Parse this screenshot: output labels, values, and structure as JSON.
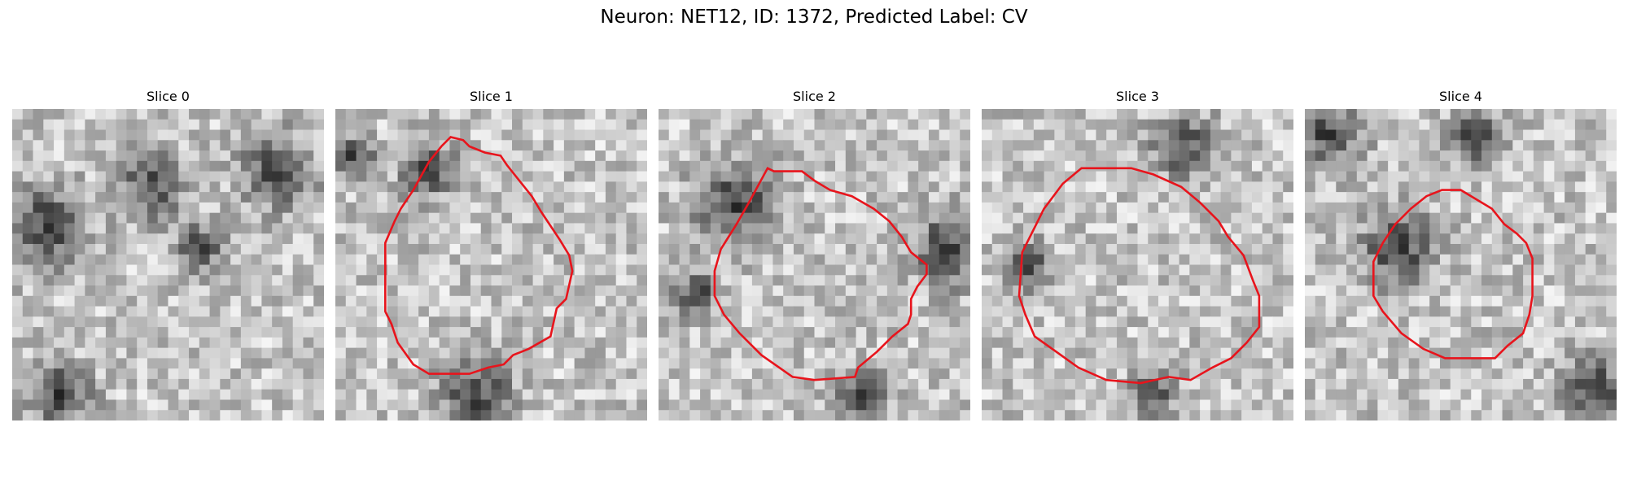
{
  "figure": {
    "title": "Neuron: NET12, ID: 1372, Predicted Label: CV",
    "contour_color": "#e8141c"
  },
  "panels": [
    {
      "title": "Slice 0",
      "has_contour": false,
      "seed": 11,
      "dark_spots": [
        [
          0.1,
          0.38,
          0.09
        ],
        [
          0.45,
          0.25,
          0.07
        ],
        [
          0.6,
          0.45,
          0.05
        ],
        [
          0.15,
          0.92,
          0.07
        ],
        [
          0.85,
          0.2,
          0.08
        ]
      ],
      "contour": []
    },
    {
      "title": "Slice 1",
      "has_contour": true,
      "seed": 23,
      "dark_spots": [
        [
          0.45,
          0.92,
          0.08
        ],
        [
          0.3,
          0.2,
          0.06
        ],
        [
          0.05,
          0.15,
          0.05
        ]
      ],
      "contour": [
        [
          0.37,
          0.09
        ],
        [
          0.41,
          0.1
        ],
        [
          0.43,
          0.12
        ],
        [
          0.48,
          0.14
        ],
        [
          0.53,
          0.15
        ],
        [
          0.55,
          0.18
        ],
        [
          0.63,
          0.28
        ],
        [
          0.66,
          0.33
        ],
        [
          0.72,
          0.42
        ],
        [
          0.75,
          0.47
        ],
        [
          0.76,
          0.52
        ],
        [
          0.74,
          0.61
        ],
        [
          0.71,
          0.64
        ],
        [
          0.69,
          0.73
        ],
        [
          0.62,
          0.77
        ],
        [
          0.57,
          0.79
        ],
        [
          0.54,
          0.82
        ],
        [
          0.49,
          0.83
        ],
        [
          0.43,
          0.85
        ],
        [
          0.3,
          0.85
        ],
        [
          0.25,
          0.82
        ],
        [
          0.2,
          0.75
        ],
        [
          0.18,
          0.69
        ],
        [
          0.16,
          0.65
        ],
        [
          0.16,
          0.43
        ],
        [
          0.19,
          0.36
        ],
        [
          0.21,
          0.32
        ],
        [
          0.25,
          0.26
        ],
        [
          0.3,
          0.17
        ],
        [
          0.34,
          0.12
        ]
      ]
    },
    {
      "title": "Slice 2",
      "has_contour": true,
      "seed": 37,
      "dark_spots": [
        [
          0.25,
          0.3,
          0.09
        ],
        [
          0.93,
          0.45,
          0.08
        ],
        [
          0.65,
          0.92,
          0.06
        ],
        [
          0.12,
          0.6,
          0.05
        ]
      ],
      "contour": [
        [
          0.35,
          0.19
        ],
        [
          0.37,
          0.2
        ],
        [
          0.46,
          0.2
        ],
        [
          0.5,
          0.23
        ],
        [
          0.55,
          0.26
        ],
        [
          0.62,
          0.28
        ],
        [
          0.69,
          0.32
        ],
        [
          0.74,
          0.36
        ],
        [
          0.78,
          0.41
        ],
        [
          0.81,
          0.46
        ],
        [
          0.86,
          0.5
        ],
        [
          0.86,
          0.53
        ],
        [
          0.83,
          0.57
        ],
        [
          0.81,
          0.61
        ],
        [
          0.81,
          0.66
        ],
        [
          0.8,
          0.69
        ],
        [
          0.75,
          0.73
        ],
        [
          0.72,
          0.76
        ],
        [
          0.7,
          0.78
        ],
        [
          0.64,
          0.83
        ],
        [
          0.63,
          0.86
        ],
        [
          0.5,
          0.87
        ],
        [
          0.43,
          0.86
        ],
        [
          0.33,
          0.79
        ],
        [
          0.26,
          0.72
        ],
        [
          0.21,
          0.66
        ],
        [
          0.18,
          0.6
        ],
        [
          0.18,
          0.52
        ],
        [
          0.2,
          0.45
        ],
        [
          0.25,
          0.37
        ],
        [
          0.29,
          0.3
        ]
      ]
    },
    {
      "title": "Slice 3",
      "has_contour": true,
      "seed": 53,
      "dark_spots": [
        [
          0.65,
          0.12,
          0.07
        ],
        [
          0.15,
          0.5,
          0.05
        ],
        [
          0.55,
          0.92,
          0.05
        ]
      ],
      "contour": [
        [
          0.32,
          0.19
        ],
        [
          0.48,
          0.19
        ],
        [
          0.55,
          0.21
        ],
        [
          0.64,
          0.25
        ],
        [
          0.7,
          0.3
        ],
        [
          0.76,
          0.36
        ],
        [
          0.79,
          0.41
        ],
        [
          0.84,
          0.47
        ],
        [
          0.87,
          0.55
        ],
        [
          0.89,
          0.6
        ],
        [
          0.89,
          0.7
        ],
        [
          0.85,
          0.75
        ],
        [
          0.8,
          0.8
        ],
        [
          0.74,
          0.83
        ],
        [
          0.67,
          0.87
        ],
        [
          0.6,
          0.86
        ],
        [
          0.51,
          0.88
        ],
        [
          0.4,
          0.87
        ],
        [
          0.31,
          0.83
        ],
        [
          0.24,
          0.78
        ],
        [
          0.17,
          0.73
        ],
        [
          0.14,
          0.66
        ],
        [
          0.12,
          0.6
        ],
        [
          0.13,
          0.46
        ],
        [
          0.16,
          0.4
        ],
        [
          0.2,
          0.32
        ],
        [
          0.26,
          0.24
        ]
      ]
    },
    {
      "title": "Slice 4",
      "has_contour": true,
      "seed": 71,
      "dark_spots": [
        [
          0.08,
          0.08,
          0.07
        ],
        [
          0.55,
          0.1,
          0.06
        ],
        [
          0.3,
          0.45,
          0.08
        ],
        [
          0.93,
          0.9,
          0.07
        ]
      ],
      "contour": [
        [
          0.44,
          0.26
        ],
        [
          0.5,
          0.26
        ],
        [
          0.55,
          0.29
        ],
        [
          0.6,
          0.32
        ],
        [
          0.64,
          0.37
        ],
        [
          0.68,
          0.4
        ],
        [
          0.71,
          0.43
        ],
        [
          0.73,
          0.48
        ],
        [
          0.73,
          0.6
        ],
        [
          0.72,
          0.66
        ],
        [
          0.7,
          0.72
        ],
        [
          0.65,
          0.76
        ],
        [
          0.61,
          0.8
        ],
        [
          0.45,
          0.8
        ],
        [
          0.38,
          0.77
        ],
        [
          0.31,
          0.72
        ],
        [
          0.25,
          0.65
        ],
        [
          0.22,
          0.6
        ],
        [
          0.22,
          0.49
        ],
        [
          0.25,
          0.43
        ],
        [
          0.29,
          0.37
        ],
        [
          0.34,
          0.32
        ],
        [
          0.39,
          0.28
        ]
      ]
    }
  ]
}
